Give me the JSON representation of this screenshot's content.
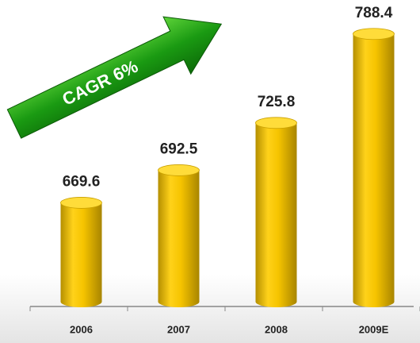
{
  "chart_data": {
    "type": "bar",
    "annotation": "CAGR 6%",
    "categories": [
      "2006",
      "2007",
      "2008",
      "2009E"
    ],
    "values": [
      669.6,
      692.5,
      725.8,
      788.4
    ],
    "color": "#f2c200",
    "ylim": [
      600,
      800
    ]
  }
}
